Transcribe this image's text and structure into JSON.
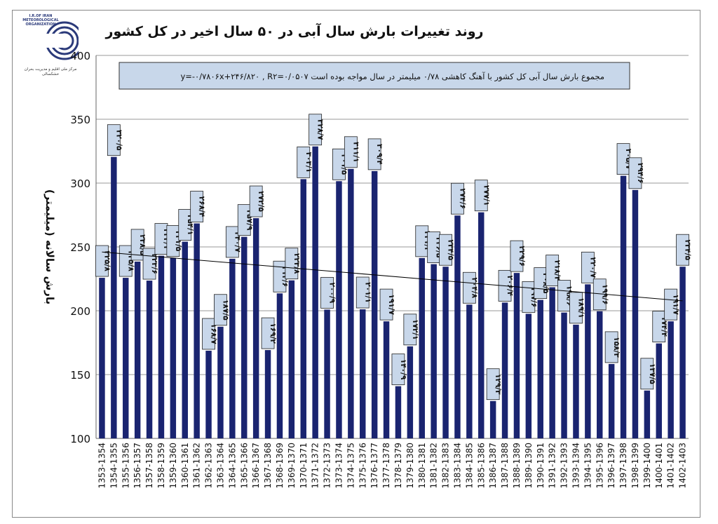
{
  "header": {
    "title": "روند تغییرات بارش سال آبی در ۵۰ سال اخیر در کل کشور",
    "logo_text_en": "I.R.OF IRAN METEOROLOGICAL ORGANIZATION",
    "logo_text_fa": "مرکز ملی اقلیم و مدیریت بحران خشکسالی"
  },
  "colors": {
    "bar": "#1a2470",
    "label_box": "#c8d7ea",
    "annotation_box": "#c8d7ea",
    "trend": "#000000",
    "grid": "#9a9a9a"
  },
  "chart_data": {
    "type": "bar",
    "title": "روند تغییرات بارش سال آبی در ۵۰ سال اخیر در کل کشور",
    "xlabel": "",
    "ylabel": "بارش سالانه (میلیمتر)",
    "ylim": [
      100,
      400
    ],
    "yticks": [
      100,
      150,
      200,
      250,
      300,
      350,
      400
    ],
    "grid": true,
    "annotation": "مجموع بارش سال آبی کل کشور با آهنگ کاهشی ۰/۷۸ میلیمتر در سال مواجه بوده است     y=-۰/۷۸۰۶x+۲۴۶/۸۲۰ , R۲=۰/۰۵۰۷",
    "trendline": {
      "slope": -0.7806,
      "intercept": 246.82,
      "r2": 0.0507
    },
    "categories": [
      "1353-1354",
      "1354-1355",
      "1355-1356",
      "1356-1357",
      "1357-1358",
      "1358-1359",
      "1359-1360",
      "1360-1361",
      "1361-1362",
      "1362-1363",
      "1363-1364",
      "1364-1365",
      "1365-1366",
      "1366-1367",
      "1367-1368",
      "1368-1369",
      "1369-1370",
      "1370-1371",
      "1371-1372",
      "1372-1373",
      "1373-1374",
      "1374-1375",
      "1375-1376",
      "1376-1377",
      "1377-1378",
      "1378-1379",
      "1379-1380",
      "1380-1381",
      "1381-1382",
      "1382-1383",
      "1383-1384",
      "1384-1385",
      "1385-1386",
      "1386-1387",
      "1387-1388",
      "1388-1389",
      "1389-1390",
      "1390-1391",
      "1391-1392",
      "1392-1393",
      "1393-1394",
      "1394-1395",
      "1395-1396",
      "1396-1397",
      "1397-1398",
      "1398-1399",
      "1399-1400",
      "1400-1401",
      "1401-1402",
      "1402-1403"
    ],
    "values": [
      225.8,
      320.5,
      225.8,
      238.5,
      223.6,
      243.1,
      241.5,
      254.1,
      268.4,
      168.7,
      187.5,
      240.7,
      257.9,
      272.5,
      169.2,
      213.6,
      223.8,
      303.1,
      328.7,
      200.9,
      301.5,
      311.1,
      201.1,
      309.4,
      191.7,
      140.9,
      172.1,
      241.3,
      236.5,
      234.5,
      274.6,
      204.8,
      277.1,
      129.3,
      206.4,
      229.6,
      197.6,
      208.5,
      218.4,
      198.6,
      189.1,
      220.7,
      199.6,
      158.3,
      305.7,
      294.6,
      137.5,
      174.4,
      191.7,
      234.5
    ],
    "value_labels": [
      "۲۲۵/۸",
      "۳۲۰/۵",
      "۲۲۵/۸",
      "۲۳۸/۵",
      "۲۲۳/۶",
      "۲۴۳/۱",
      "۲۴۱/۵",
      "۲۵۴/۱",
      "۲۶۸/۴",
      "۱۶۸/۷",
      "۱۸۷/۵",
      "۲۴۰/۷",
      "۲۵۷/۹",
      "۲۷۲/۵",
      "۱۶۹/۲",
      "۲۱۳/۶",
      "۲۲۳/۸",
      "۳۰۳/۱",
      "۳۲۸/۷",
      "۲۰۰/۹",
      "۳۰۱/۵",
      "۳۱۱/۱",
      "۲۰۱/۱",
      "۳۰۹/۴",
      "۱۹۱/۷",
      "۱۴۰/۹",
      "۱۷۲/۱",
      "۲۴۱/۳",
      "۲۳۶/۵",
      "۲۳۴/۵",
      "۲۷۴/۶",
      "۲۰۴/۸",
      "۲۷۷/۱",
      "۱۲۹/۳",
      "۲۰۶/۴",
      "۲۲۹/۶",
      "۱۹۷/۶",
      "۲۰۸/۵",
      "۲۱۸/۴",
      "۱۹۸/۶",
      "۱۸۹/۱",
      "۲۲۰/۷",
      "۱۹۹/۶",
      "۱۵۸/۳",
      "۳۰۵/۷",
      "۲۹۴/۶",
      "۱۳۷/۵",
      "۱۷۴/۴",
      "۱۹۱/۷",
      "۲۳۴/۵"
    ]
  }
}
